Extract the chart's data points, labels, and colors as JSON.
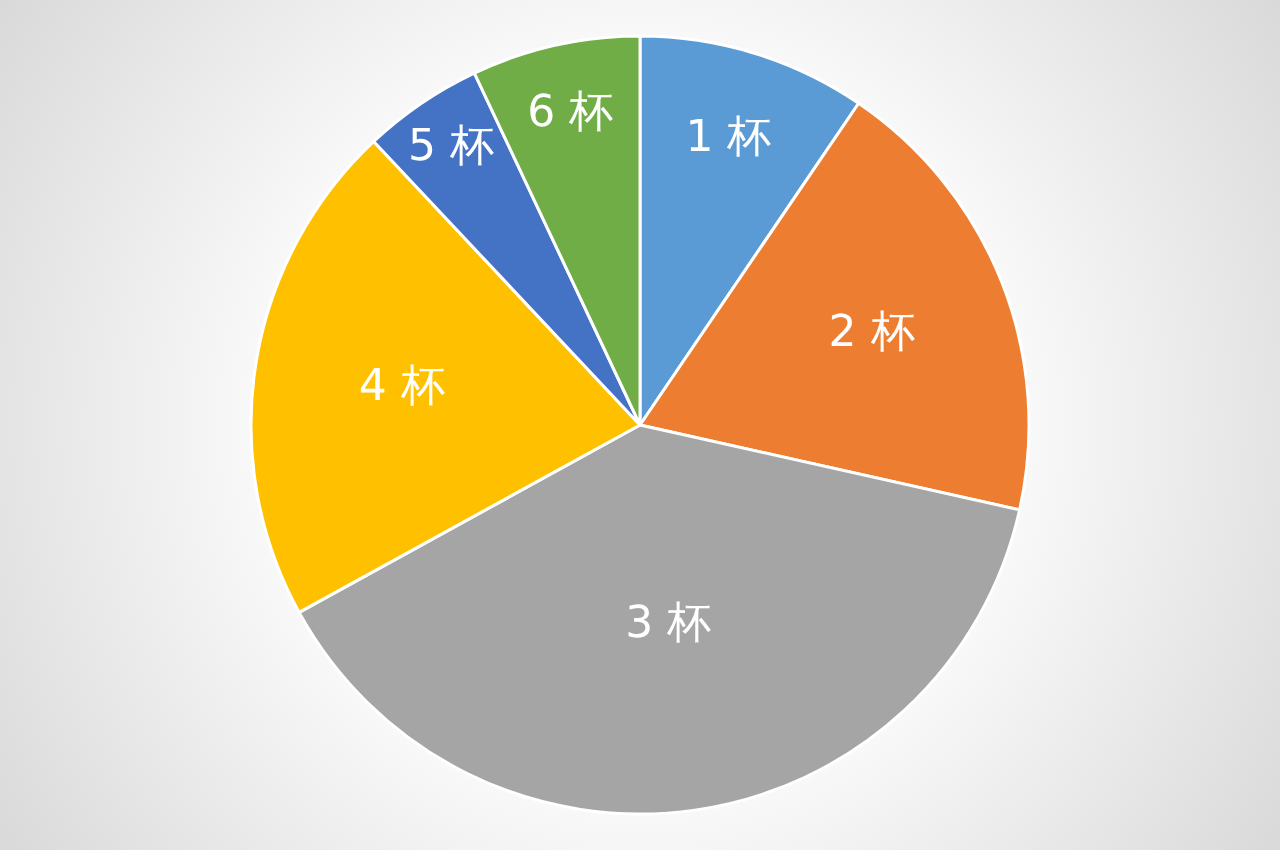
{
  "chart_data": {
    "type": "pie",
    "categories": [
      "1 杯",
      "2 杯",
      "3 杯",
      "4 杯",
      "5 杯",
      "6 杯"
    ],
    "values": [
      9.5,
      19,
      38.5,
      21,
      5,
      7
    ],
    "colors": [
      "#5b9bd5",
      "#ed7d31",
      "#a5a5a5",
      "#ffc000",
      "#4472c4",
      "#70ad47"
    ],
    "legend": false
  }
}
